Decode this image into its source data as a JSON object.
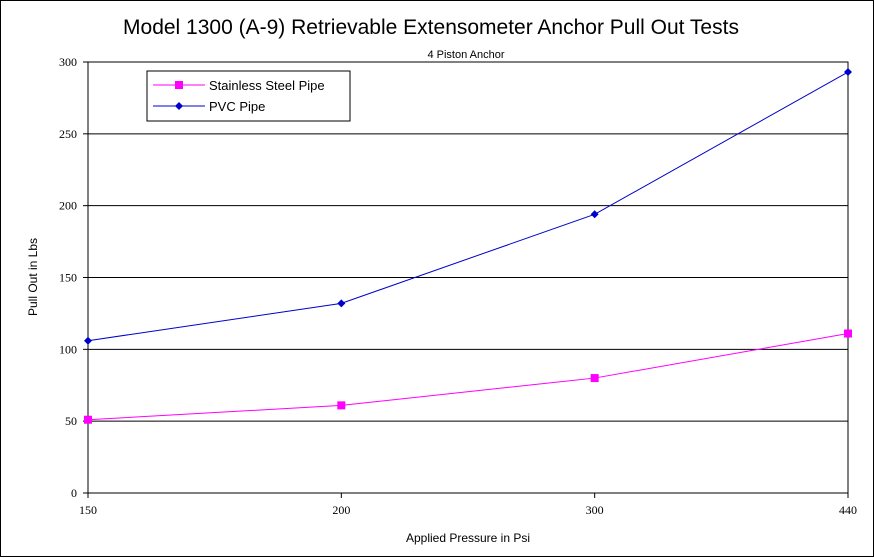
{
  "chart_data": {
    "type": "line",
    "title": "Model 1300 (A-9) Retrievable Extensometer Anchor Pull Out Tests",
    "subtitle": "4 Piston Anchor",
    "xlabel": "Applied Pressure in Psi",
    "ylabel": "Pull Out in Lbs",
    "categories": [
      "150",
      "200",
      "300",
      "440"
    ],
    "ylim": [
      0,
      300
    ],
    "yticks": [
      0,
      50,
      100,
      150,
      200,
      250,
      300
    ],
    "grid": true,
    "legend_position": "top-left",
    "series": [
      {
        "name": "Stainless Steel Pipe",
        "values": [
          51,
          61,
          80,
          111
        ],
        "color": "#ff00ff",
        "marker": "square"
      },
      {
        "name": "PVC Pipe",
        "values": [
          106,
          132,
          194,
          293
        ],
        "color": "#0000cc",
        "marker": "diamond"
      }
    ]
  }
}
